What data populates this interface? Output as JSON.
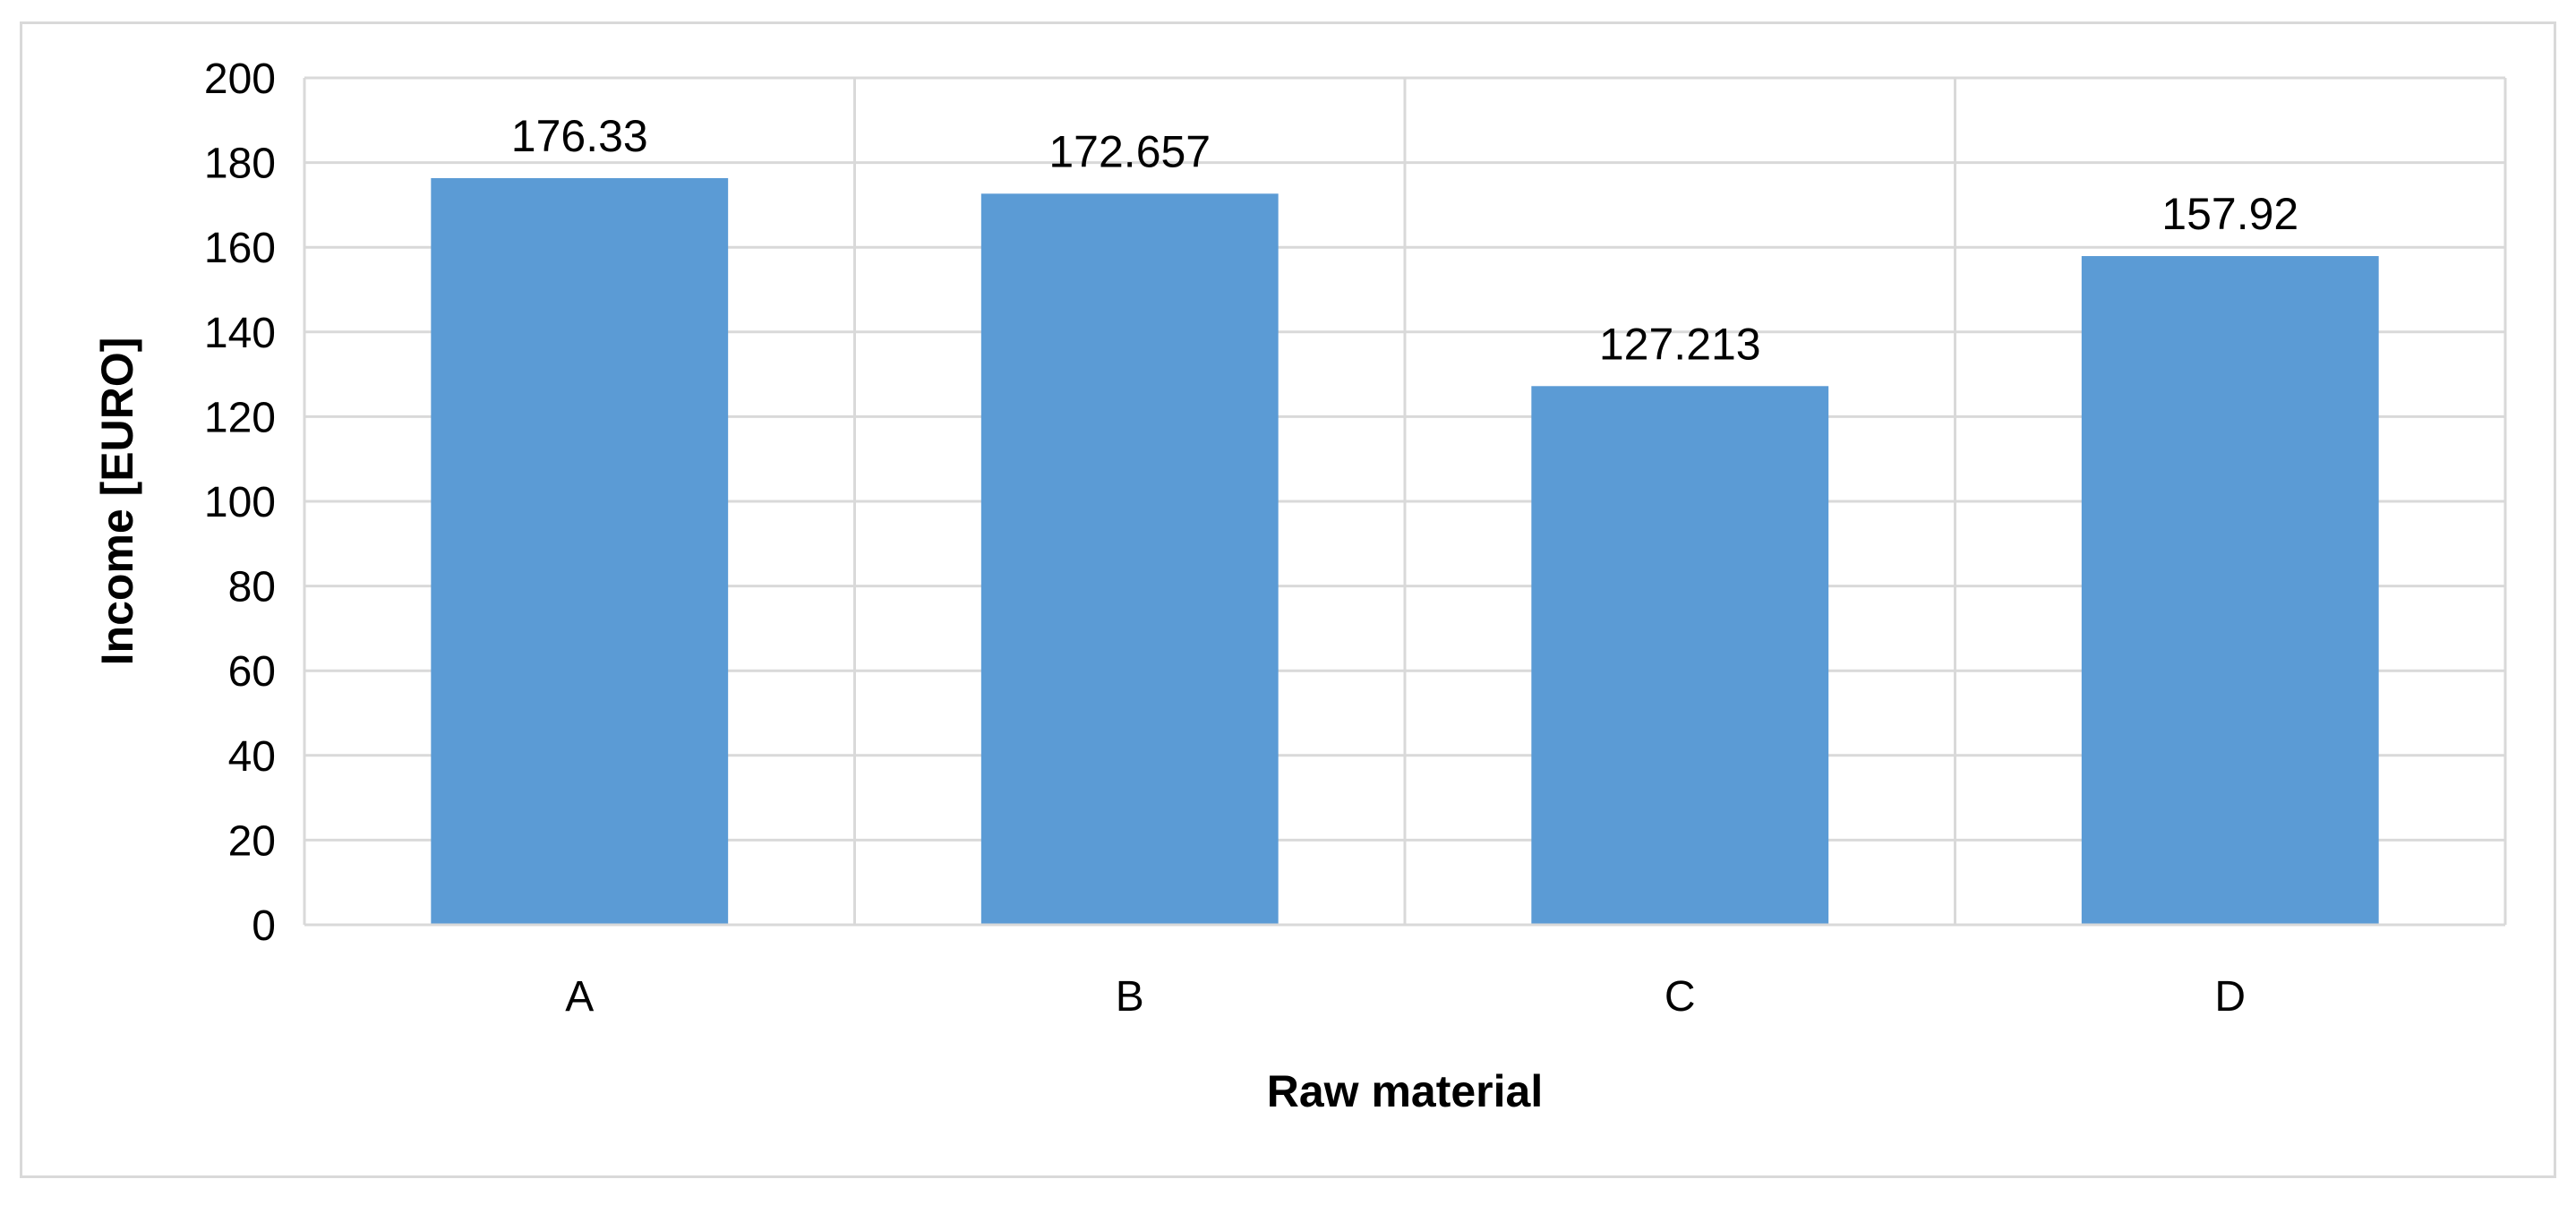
{
  "chart_data": {
    "type": "bar",
    "title": "",
    "xlabel": "Raw material",
    "ylabel": "Income [EURO]",
    "categories": [
      "A",
      "B",
      "C",
      "D"
    ],
    "values": [
      176.33,
      172.657,
      127.213,
      157.92
    ],
    "data_labels": [
      "176.33",
      "172.657",
      "127.213",
      "157.92"
    ],
    "y_ticks": [
      "0",
      "20",
      "40",
      "60",
      "80",
      "100",
      "120",
      "140",
      "160",
      "180",
      "200"
    ],
    "ylim": [
      0,
      200
    ],
    "grid": true,
    "legend": "none",
    "colors": {
      "bar": "#5b9bd5",
      "grid": "#d9d9d9",
      "frame": "#d9d9d9"
    }
  }
}
